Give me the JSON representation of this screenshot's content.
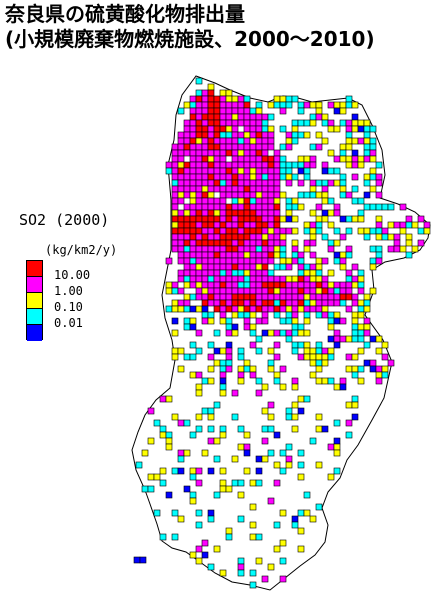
{
  "title": {
    "line1": "奈良県の硫黄酸化物排出量",
    "line2": "(小規模廃棄物燃焼施設、2000～2010)"
  },
  "legend": {
    "title": "SO2 (2000)",
    "unit": "(kg/km2/y)",
    "classes": [
      {
        "label": "10.00",
        "color": "#ff0000"
      },
      {
        "label": "1.00",
        "color": "#ff00ff"
      },
      {
        "label": "0.10",
        "color": "#ffff00"
      },
      {
        "label": "0.01",
        "color": "#00ffff"
      },
      {
        "label": "",
        "color": "#0000ff"
      }
    ]
  },
  "colors": {
    "red": "#ff0000",
    "magenta": "#ff00ff",
    "yellow": "#ffff00",
    "cyan": "#00ffff",
    "blue": "#0000ff",
    "outline": "#000000"
  }
}
